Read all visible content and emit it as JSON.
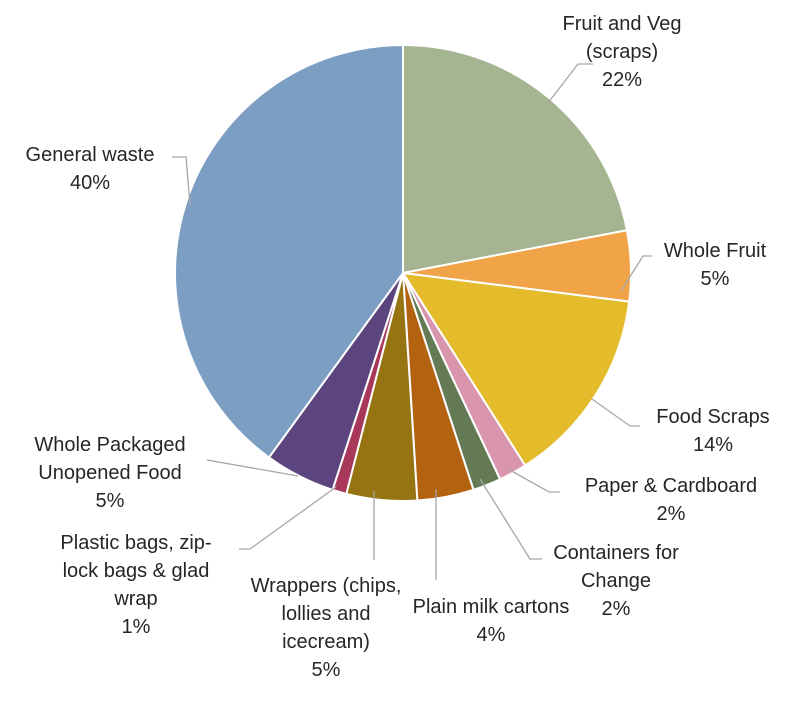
{
  "chart_data": {
    "type": "pie",
    "title": "",
    "slices": [
      {
        "label": [
          "Fruit and Veg",
          "(scraps)"
        ],
        "percent_label": "22%",
        "value": 22,
        "color": "#a5b592"
      },
      {
        "label": [
          "Whole Fruit"
        ],
        "percent_label": "5%",
        "value": 5,
        "color": "#f0a447"
      },
      {
        "label": [
          "Food Scraps"
        ],
        "percent_label": "14%",
        "value": 14,
        "color": "#e3bb2b"
      },
      {
        "label": [
          "Paper & Cardboard"
        ],
        "percent_label": "2%",
        "value": 2,
        "color": "#d895ad"
      },
      {
        "label": [
          "Containers for",
          "Change"
        ],
        "percent_label": "2%",
        "value": 2,
        "color": "#647a54"
      },
      {
        "label": [
          "Plain milk cartons"
        ],
        "percent_label": "4%",
        "value": 4,
        "color": "#b3620f"
      },
      {
        "label": [
          "Wrappers (chips,",
          "lollies and",
          "icecream)"
        ],
        "percent_label": "5%",
        "value": 5,
        "color": "#957411"
      },
      {
        "label": [
          "Plastic bags, zip-",
          "lock bags & glad",
          "wrap"
        ],
        "percent_label": "1%",
        "value": 1,
        "color": "#a8385a"
      },
      {
        "label": [
          "Whole Packaged",
          "Unopened Food"
        ],
        "percent_label": "5%",
        "value": 5,
        "color": "#5c447f"
      },
      {
        "label": [
          "General waste"
        ],
        "percent_label": "40%",
        "value": 40,
        "color": "#7d9ec3"
      }
    ]
  }
}
